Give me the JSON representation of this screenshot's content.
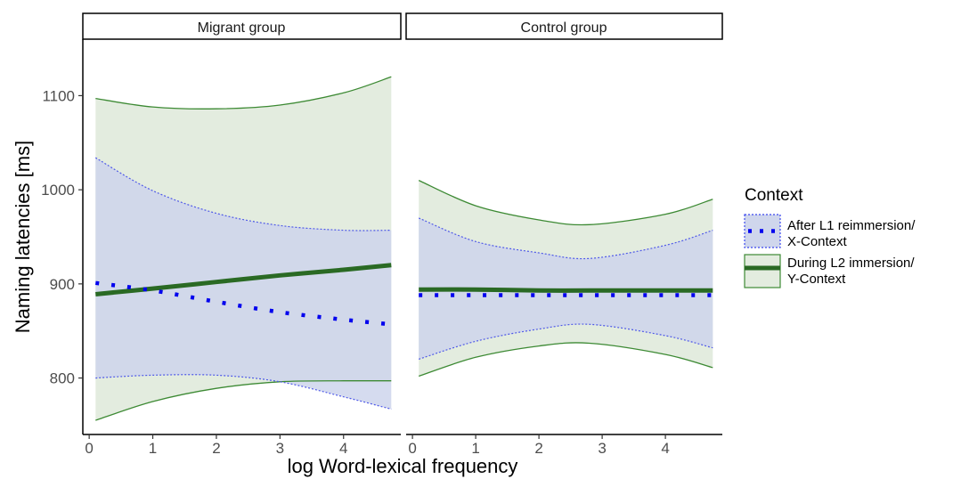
{
  "chart_data": {
    "type": "line",
    "ylabel": "Naming latencies [ms]",
    "xlabel": "log Word-lexical frequency",
    "xlim": [
      -0.1,
      4.9
    ],
    "ylim": [
      740,
      1160
    ],
    "x_ticks": [
      0,
      1,
      2,
      3,
      4
    ],
    "y_ticks": [
      800,
      900,
      1000,
      1100
    ],
    "legend": {
      "title": "Context",
      "position": "right",
      "entries": [
        {
          "label_line1": "After L1 reimmersion/",
          "label_line2": "X-Context",
          "color": "#0000ee",
          "fill": "#cfd6ec",
          "style": "dotted"
        },
        {
          "label_line1": "During L2 immersion/",
          "label_line2": "Y-Context",
          "color": "#2a6a24",
          "fill": "#e3ecdf",
          "style": "solid"
        }
      ]
    },
    "colors": {
      "x_line": "#0000ee",
      "x_band_edge": "#4f59e8",
      "x_band_fill": "#ced5ec",
      "y_line": "#2a6a24",
      "y_band_edge": "#3d8a34",
      "y_band_fill": "#e3ecdf"
    },
    "panels": [
      {
        "strip": "Migrant group",
        "x": [
          0.1,
          1,
          2,
          3,
          4,
          4.75
        ],
        "series": [
          {
            "context": "X",
            "mean": [
              901,
              893,
              881,
              870,
              862,
              857
            ],
            "lower": [
              800,
              803,
              803,
              796,
              780,
              767
            ],
            "upper": [
              1034,
              999,
              975,
              962,
              957,
              957
            ]
          },
          {
            "context": "Y",
            "mean": [
              889,
              895,
              902,
              909,
              915,
              920
            ],
            "lower": [
              755,
              775,
              789,
              796,
              797,
              797
            ],
            "upper": [
              1097,
              1088,
              1086,
              1090,
              1103,
              1120
            ]
          }
        ]
      },
      {
        "strip": "Control group",
        "x": [
          0.1,
          1,
          2,
          2.8,
          4,
          4.75
        ],
        "series": [
          {
            "context": "X",
            "mean": [
              888,
              888,
              888,
              888,
              888,
              888
            ],
            "lower": [
              820,
              839,
              852,
              857,
              845,
              832
            ],
            "upper": [
              970,
              945,
              933,
              927,
              941,
              957
            ]
          },
          {
            "context": "Y",
            "mean": [
              894,
              894,
              893,
              893,
              893,
              893
            ],
            "lower": [
              802,
              822,
              834,
              837,
              825,
              811
            ],
            "upper": [
              1010,
              983,
              968,
              963,
              974,
              990
            ]
          }
        ]
      }
    ]
  }
}
